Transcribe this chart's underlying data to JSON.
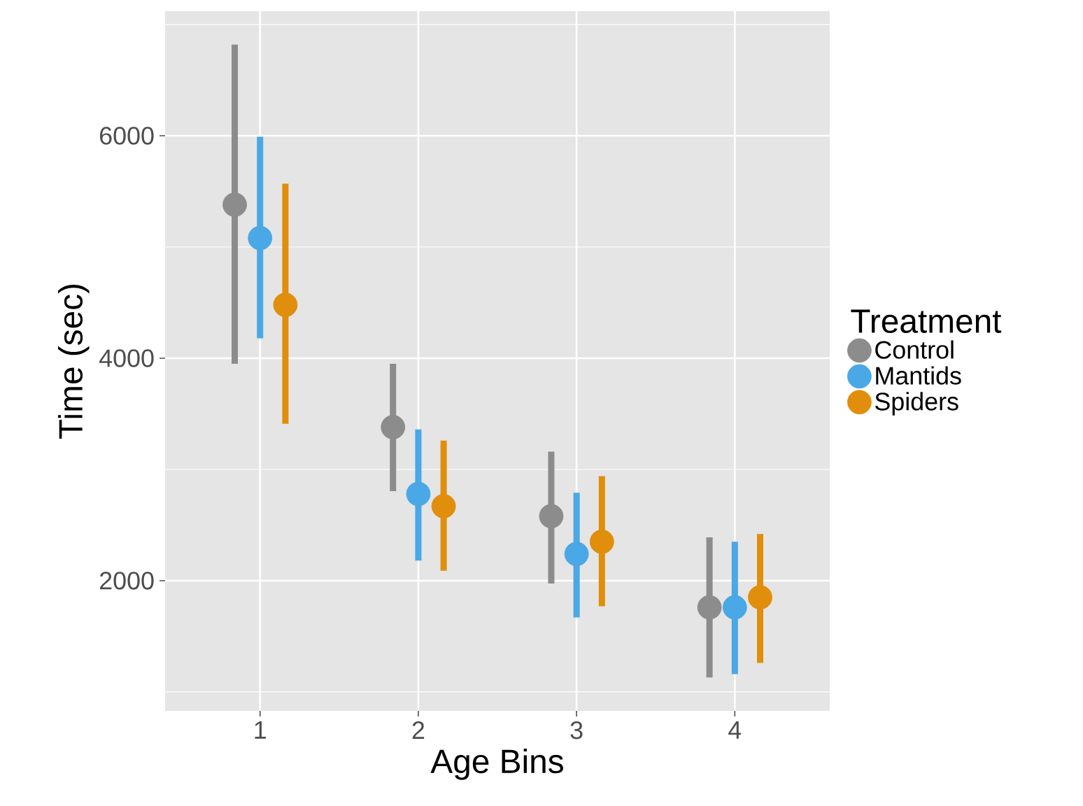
{
  "chart_data": {
    "type": "scatter",
    "categories": [
      "1",
      "2",
      "3",
      "4"
    ],
    "xlabel": "Age Bins",
    "ylabel": "Time (sec)",
    "legend_title": "Treatment",
    "ylim": [
      830,
      7120
    ],
    "yticks": [
      {
        "value": 1000,
        "label": null
      },
      2000,
      {
        "value": 3000,
        "label": null
      },
      4000,
      {
        "value": 5000,
        "label": null
      },
      6000,
      {
        "value": 7000,
        "label": null
      }
    ],
    "grid": true,
    "legend": "right",
    "marker": "circle",
    "series": [
      {
        "name": "Control",
        "color": "#8c8c8c",
        "values": [
          5380,
          3380,
          2580,
          1760
        ],
        "errors": [
          [
            3950,
            6820
          ],
          [
            2805,
            3950
          ],
          [
            1975,
            3160
          ],
          [
            1130,
            2390
          ]
        ]
      },
      {
        "name": "Mantids",
        "color": "#49a8e5",
        "values": [
          5080,
          2780,
          2240,
          1760
        ],
        "errors": [
          [
            4180,
            5990
          ],
          [
            2180,
            3360
          ],
          [
            1670,
            2790
          ],
          [
            1160,
            2350
          ]
        ]
      },
      {
        "name": "Spiders",
        "color": "#e08e0b",
        "values": [
          4480,
          2670,
          2350,
          1850
        ],
        "errors": [
          [
            3410,
            5570
          ],
          [
            2090,
            3260
          ],
          [
            1770,
            2940
          ],
          [
            1260,
            2420
          ]
        ]
      }
    ]
  }
}
